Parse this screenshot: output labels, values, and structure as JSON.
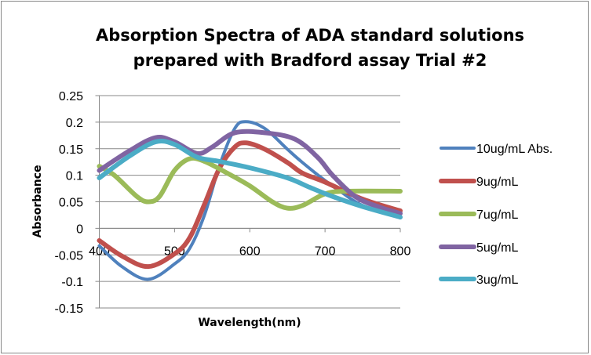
{
  "chart_data": {
    "type": "line",
    "title": [
      "Absorption Spectra of ADA standard solutions",
      "prepared with Bradford assay Trial #2"
    ],
    "xlabel": "Wavelength(nm)",
    "ylabel": "Absorbance",
    "xlim": [
      400,
      800
    ],
    "ylim": [
      -0.15,
      0.25
    ],
    "xticks": [
      "400",
      "500",
      "600",
      "700",
      "800"
    ],
    "xtick_values": [
      400,
      500,
      600,
      700,
      800
    ],
    "yticks": [
      "0.25",
      "0.2",
      "0.15",
      "0.1",
      "0.05",
      "0",
      "-0.05",
      "-0.1",
      "-0.15"
    ],
    "ytick_values": [
      0.25,
      0.2,
      0.15,
      0.1,
      0.05,
      0,
      -0.05,
      -0.1,
      -0.15
    ],
    "grid": true,
    "legend_position": "right",
    "series": [
      {
        "name": "10ug/mL Abs.",
        "color": "#4F81BD",
        "x": [
          400,
          430,
          465,
          500,
          520,
          540,
          560,
          580,
          595,
          620,
          650,
          670,
          700,
          720,
          750,
          800
        ],
        "y": [
          -0.033,
          -0.072,
          -0.096,
          -0.067,
          -0.038,
          0.026,
          0.119,
          0.188,
          0.201,
          0.188,
          0.149,
          0.124,
          0.09,
          0.07,
          0.043,
          0.021
        ]
      },
      {
        "name": "9ug/mL",
        "color": "#C0504D",
        "x": [
          400,
          430,
          465,
          500,
          520,
          540,
          560,
          580,
          595,
          620,
          650,
          670,
          700,
          750,
          800
        ],
        "y": [
          -0.023,
          -0.052,
          -0.072,
          -0.048,
          -0.018,
          0.046,
          0.114,
          0.153,
          0.161,
          0.149,
          0.124,
          0.104,
          0.087,
          0.055,
          0.033
        ]
      },
      {
        "name": "7ug/mL",
        "color": "#9BBB59",
        "x": [
          400,
          420,
          450,
          465,
          480,
          500,
          520,
          540,
          570,
          600,
          630,
          650,
          670,
          700,
          730,
          800
        ],
        "y": [
          0.117,
          0.1,
          0.06,
          0.05,
          0.06,
          0.109,
          0.131,
          0.126,
          0.104,
          0.08,
          0.05,
          0.038,
          0.043,
          0.065,
          0.07,
          0.07
        ]
      },
      {
        "name": "5ug/mL",
        "color": "#8064A2",
        "x": [
          400,
          440,
          475,
          500,
          530,
          550,
          580,
          620,
          660,
          690,
          710,
          740,
          770,
          800
        ],
        "y": [
          0.109,
          0.146,
          0.171,
          0.163,
          0.141,
          0.153,
          0.18,
          0.18,
          0.168,
          0.134,
          0.1,
          0.06,
          0.041,
          0.028
        ]
      },
      {
        "name": "3ug/mL",
        "color": "#4BACC6",
        "x": [
          400,
          440,
          475,
          500,
          530,
          560,
          600,
          650,
          680,
          710,
          750,
          800
        ],
        "y": [
          0.095,
          0.136,
          0.163,
          0.158,
          0.134,
          0.126,
          0.114,
          0.095,
          0.077,
          0.06,
          0.041,
          0.021
        ]
      }
    ]
  }
}
